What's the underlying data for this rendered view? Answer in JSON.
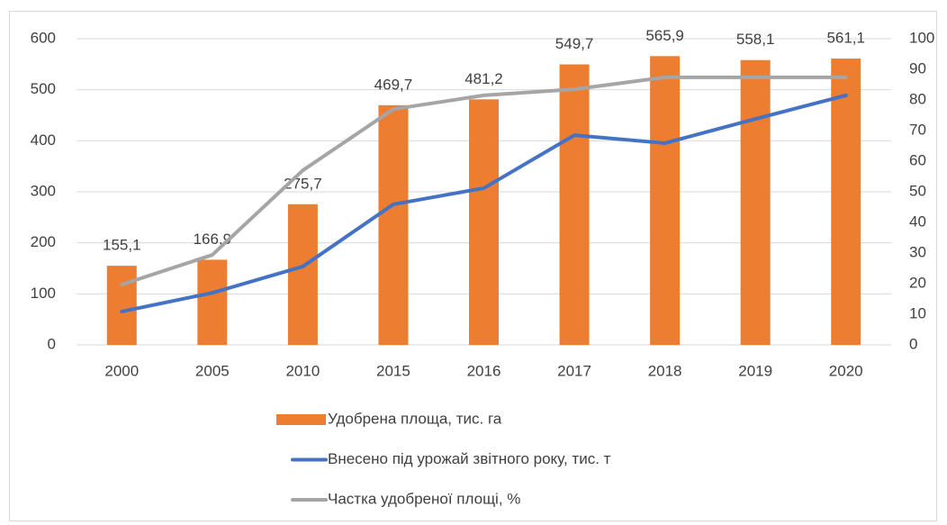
{
  "chart_data": {
    "type": "bar",
    "categories": [
      "2000",
      "2005",
      "2010",
      "2015",
      "2016",
      "2017",
      "2018",
      "2019",
      "2020"
    ],
    "series": [
      {
        "name": "Удобрена площа, тис. га",
        "type": "bar",
        "color": "#ed7d31",
        "values": [
          155.1,
          166.9,
          275.7,
          469.7,
          481.2,
          549.7,
          565.9,
          558.1,
          561.1
        ],
        "value_labels": [
          "155,1",
          "166,9",
          "275,7",
          "469,7",
          "481,2",
          "549,7",
          "565,9",
          "558,1",
          "561,1"
        ]
      },
      {
        "name": "Внесено під урожай звітного року, тис. т",
        "type": "line",
        "axis": "y2",
        "color": "#4472c4",
        "values": [
          10.9,
          17,
          25.6,
          45.9,
          51.2,
          68.5,
          65.9,
          73.8,
          81.5
        ]
      },
      {
        "name": "Частка удобреної площі, %",
        "type": "line",
        "axis": "y2",
        "color": "#a5a5a5",
        "values": [
          19.7,
          29.4,
          57,
          77,
          81.5,
          83.5,
          87.4,
          87.4,
          87.4
        ]
      }
    ],
    "ylim": [
      0,
      600
    ],
    "yticks": [
      0,
      100,
      200,
      300,
      400,
      500,
      600
    ],
    "y2lim": [
      0,
      100
    ],
    "y2ticks": [
      0,
      10,
      20,
      30,
      40,
      50,
      60,
      70,
      80,
      90,
      100
    ],
    "grid": true,
    "legend": "bottom"
  }
}
